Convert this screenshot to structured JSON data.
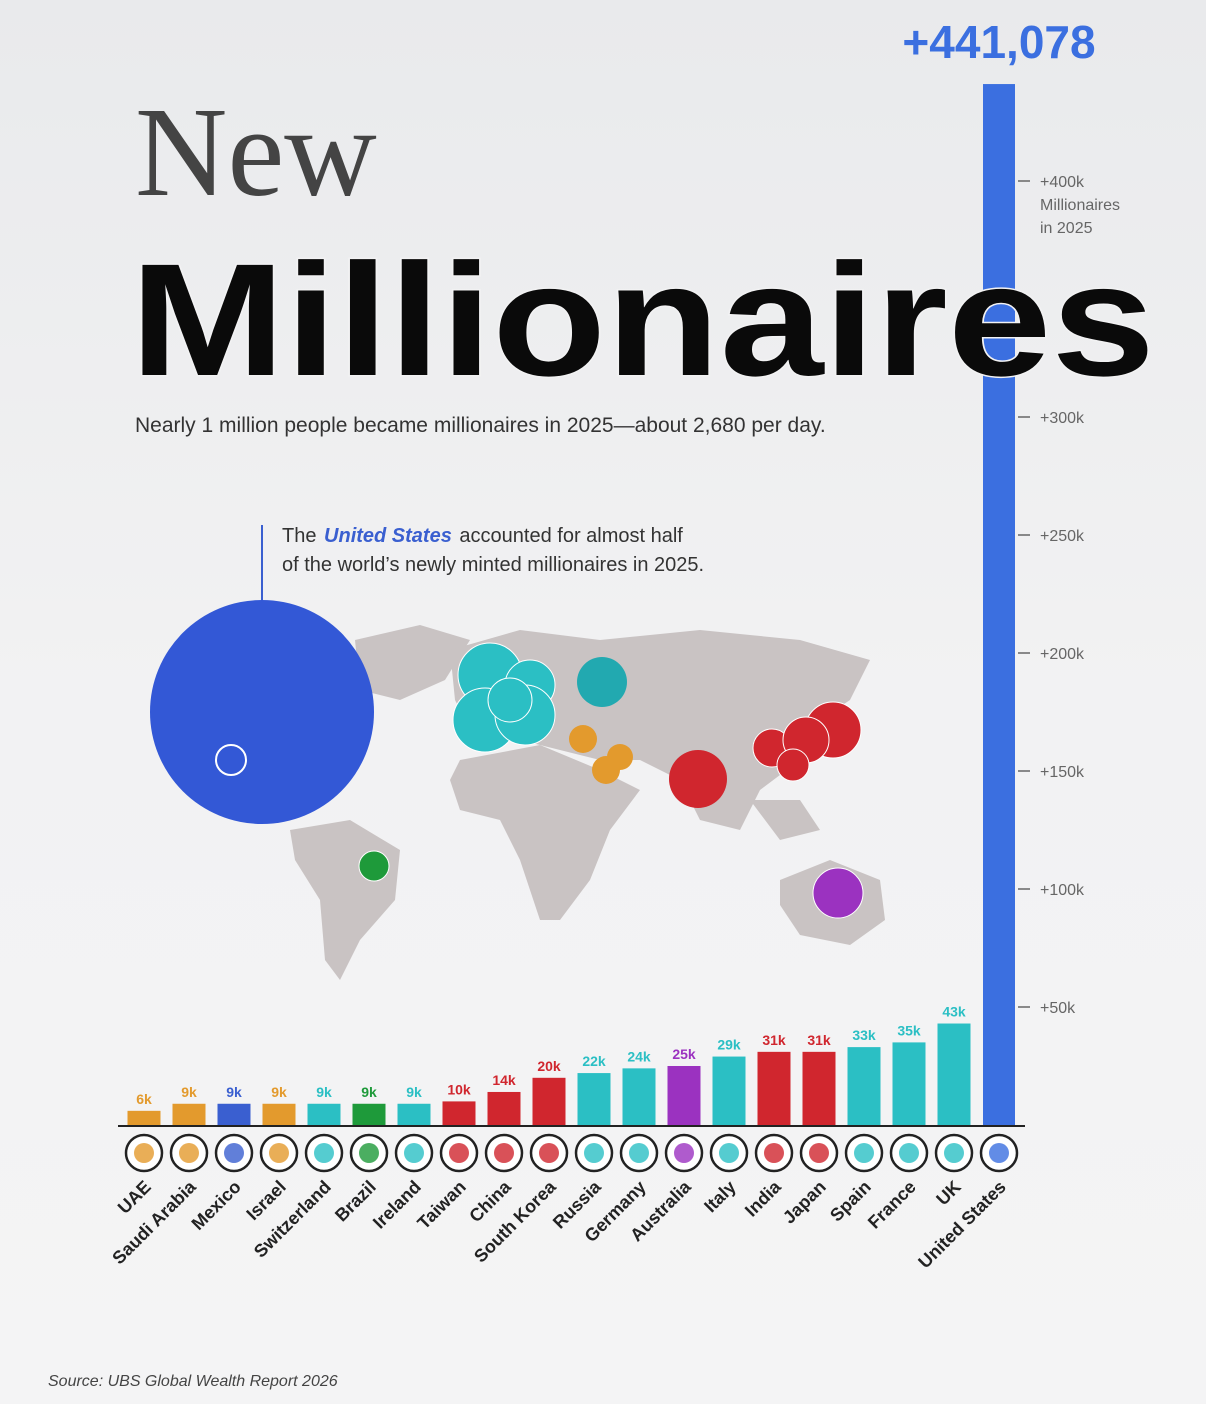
{
  "chart_data": {
    "type": "bar",
    "title_line1": "New",
    "title_line2": "Millionaires",
    "subtitle": "Nearly 1 million people became millionaires in 2025—about 2,680 per day.",
    "annotation": [
      "The",
      "United States",
      "accounted for almost half",
      "of the world’s newly minted millionaires in 2025."
    ],
    "y_axis_label": [
      "Millionaires",
      "in 2025"
    ],
    "source": "Source: UBS Global Wealth Report 2026",
    "categories": [
      "UAE",
      "Saudi Arabia",
      "Mexico",
      "Israel",
      "Switzerland",
      "Brazil",
      "Ireland",
      "Taiwan",
      "China",
      "South Korea",
      "Russia",
      "Germany",
      "Australia",
      "Italy",
      "India",
      "Japan",
      "Spain",
      "France",
      "UK",
      "United States"
    ],
    "values": [
      6000,
      9000,
      9000,
      9000,
      9000,
      9000,
      9000,
      10000,
      14000,
      20000,
      22000,
      24000,
      25000,
      29000,
      31000,
      31000,
      33000,
      35000,
      43000,
      441078
    ],
    "value_labels": [
      "6k",
      "9k",
      "9k",
      "9k",
      "9k",
      "9k",
      "9k",
      "10k",
      "14k",
      "20k",
      "22k",
      "24k",
      "25k",
      "29k",
      "31k",
      "31k",
      "33k",
      "35k",
      "43k",
      "+441,078"
    ],
    "colors": [
      "#e39a2d",
      "#e39a2d",
      "#3a5fd0",
      "#e39a2d",
      "#2bbfc4",
      "#1e9a3a",
      "#2bbfc4",
      "#d0262e",
      "#d0262e",
      "#d0262e",
      "#2bbfc4",
      "#2bbfc4",
      "#9b32c0",
      "#2bbfc4",
      "#d0262e",
      "#d0262e",
      "#2bbfc4",
      "#2bbfc4",
      "#2bbfc4",
      "#3b6fe0"
    ],
    "ylim": [
      0,
      450000
    ],
    "yticks": [
      {
        "value": 50000,
        "label": "+50k"
      },
      {
        "value": 100000,
        "label": "+100k"
      },
      {
        "value": 150000,
        "label": "+150k"
      },
      {
        "value": 200000,
        "label": "+200k"
      },
      {
        "value": 250000,
        "label": "+250k"
      },
      {
        "value": 300000,
        "label": "+300k"
      },
      {
        "value": 400000,
        "label": "+400k"
      }
    ]
  }
}
